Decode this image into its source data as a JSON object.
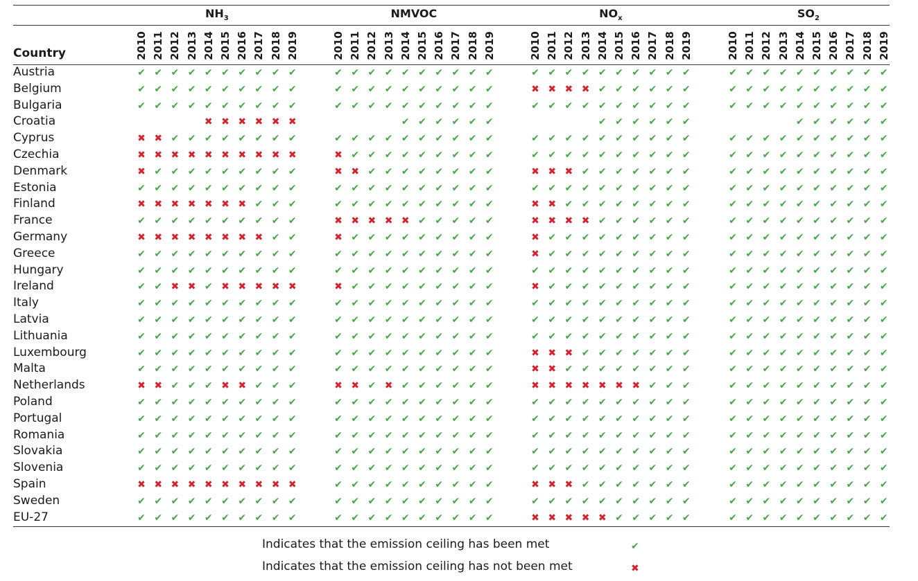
{
  "chart_data": {
    "type": "table",
    "header": {
      "country_label": "Country"
    },
    "years": [
      "2010",
      "2011",
      "2012",
      "2013",
      "2014",
      "2015",
      "2016",
      "2017",
      "2018",
      "2019"
    ],
    "pollutants": [
      {
        "name_main": "NH",
        "name_sub": "3"
      },
      {
        "name_main": "NMVOC",
        "name_sub": ""
      },
      {
        "name_main": "NO",
        "name_sub": "x"
      },
      {
        "name_main": "SO",
        "name_sub": "2"
      }
    ],
    "symbols": {
      "met": "✔",
      "not_met": "✖"
    },
    "colors": {
      "met": "#47a647",
      "not_met": "#d1242f"
    },
    "rows": [
      {
        "country": "Austria",
        "cells": [
          "YYYYYYYYYY",
          "YYYYYYYYYY",
          "YYYYYYYYYY",
          "YYYYYYYYYY"
        ]
      },
      {
        "country": "Belgium",
        "cells": [
          "YYYYYYYYYY",
          "YYYYYYYYYY",
          "NNNNYYYYYY",
          "YYYYYYYYYY"
        ]
      },
      {
        "country": "Bulgaria",
        "cells": [
          "YYYYYYYYYY",
          "YYYYYYYYYY",
          "YYYYYYYYYY",
          "YYYYYYYYYY"
        ]
      },
      {
        "country": "Croatia",
        "cells": [
          "----NNNNNN",
          "----YYYYYY",
          "----YYYYYY",
          "----YYYYYY"
        ]
      },
      {
        "country": "Cyprus",
        "cells": [
          "NNYYYYYYYY",
          "YYYYYYYYYY",
          "YYYYYYYYYY",
          "YYYYYYYYYY"
        ]
      },
      {
        "country": "Czechia",
        "cells": [
          "NNNNNNNNNN",
          "NYYYYYYYYY",
          "YYYYYYYYYY",
          "YYYYYYYYYY"
        ]
      },
      {
        "country": "Denmark",
        "cells": [
          "NYYYYYYYYY",
          "NNYYYYYYYY",
          "NNNYYYYYYY",
          "YYYYYYYYYY"
        ]
      },
      {
        "country": "Estonia",
        "cells": [
          "YYYYYYYYYY",
          "YYYYYYYYYY",
          "YYYYYYYYYY",
          "YYYYYYYYYY"
        ]
      },
      {
        "country": "Finland",
        "cells": [
          "NNNNNNNYYY",
          "YYYYYYYYYY",
          "NNYYYYYYYY",
          "YYYYYYYYYY"
        ]
      },
      {
        "country": "France",
        "cells": [
          "YYYYYYYYYY",
          "NNNNNYYYYY",
          "NNNNYYYYYY",
          "YYYYYYYYYY"
        ]
      },
      {
        "country": "Germany",
        "cells": [
          "NNNNNNNNYY",
          "NYYYYYYYYY",
          "NYYYYYYYYY",
          "YYYYYYYYYY"
        ]
      },
      {
        "country": "Greece",
        "cells": [
          "YYYYYYYYYY",
          "YYYYYYYYYY",
          "NYYYYYYYYY",
          "YYYYYYYYYY"
        ]
      },
      {
        "country": "Hungary",
        "cells": [
          "YYYYYYYYYY",
          "YYYYYYYYYY",
          "YYYYYYYYYY",
          "YYYYYYYYYY"
        ]
      },
      {
        "country": "Ireland",
        "cells": [
          "YYNNYNNNNN",
          "NYYYYYYYYY",
          "NYYYYYYYYY",
          "YYYYYYYYYY"
        ]
      },
      {
        "country": "Italy",
        "cells": [
          "YYYYYYYYYY",
          "YYYYYYYYYY",
          "YYYYYYYYYY",
          "YYYYYYYYYY"
        ]
      },
      {
        "country": "Latvia",
        "cells": [
          "YYYYYYYYYY",
          "YYYYYYYYYY",
          "YYYYYYYYYY",
          "YYYYYYYYYY"
        ]
      },
      {
        "country": "Lithuania",
        "cells": [
          "YYYYYYYYYY",
          "YYYYYYYYYY",
          "YYYYYYYYYY",
          "YYYYYYYYYY"
        ]
      },
      {
        "country": "Luxembourg",
        "cells": [
          "YYYYYYYYYY",
          "YYYYYYYYYY",
          "NNNYYYYYYY",
          "YYYYYYYYYY"
        ]
      },
      {
        "country": "Malta",
        "cells": [
          "YYYYYYYYYY",
          "YYYYYYYYYY",
          "NNYYYYYYYY",
          "YYYYYYYYYY"
        ]
      },
      {
        "country": "Netherlands",
        "cells": [
          "NNYYYNNYYY",
          "NNYNYYYYYY",
          "NNNNNNNYYY",
          "YYYYYYYYYY"
        ]
      },
      {
        "country": "Poland",
        "cells": [
          "YYYYYYYYYY",
          "YYYYYYYYYY",
          "YYYYYYYYYY",
          "YYYYYYYYYY"
        ]
      },
      {
        "country": "Portugal",
        "cells": [
          "YYYYYYYYYY",
          "YYYYYYYYYY",
          "YYYYYYYYYY",
          "YYYYYYYYYY"
        ]
      },
      {
        "country": "Romania",
        "cells": [
          "YYYYYYYYYY",
          "YYYYYYYYYY",
          "YYYYYYYYYY",
          "YYYYYYYYYY"
        ]
      },
      {
        "country": "Slovakia",
        "cells": [
          "YYYYYYYYYY",
          "YYYYYYYYYY",
          "YYYYYYYYYY",
          "YYYYYYYYYY"
        ]
      },
      {
        "country": "Slovenia",
        "cells": [
          "YYYYYYYYYY",
          "YYYYYYYYYY",
          "YYYYYYYYYY",
          "YYYYYYYYYY"
        ]
      },
      {
        "country": "Spain",
        "cells": [
          "NNNNNNNNNN",
          "YYYYYYYYYY",
          "NNNYYYYYYY",
          "YYYYYYYYYY"
        ]
      },
      {
        "country": "Sweden",
        "cells": [
          "YYYYYYYYYY",
          "YYYYYYYYYY",
          "YYYYYYYYYY",
          "YYYYYYYYYY"
        ]
      },
      {
        "country": "EU-27",
        "cells": [
          "YYYYYYYYYY",
          "YYYYYYYYYY",
          "NNNNNYYYYY",
          "YYYYYYYYYY"
        ]
      }
    ],
    "legend": [
      {
        "text": "Indicates that the emission ceiling has been met",
        "status": "met"
      },
      {
        "text": "Indicates that the emission ceiling has not been met",
        "status": "not_met"
      }
    ]
  }
}
